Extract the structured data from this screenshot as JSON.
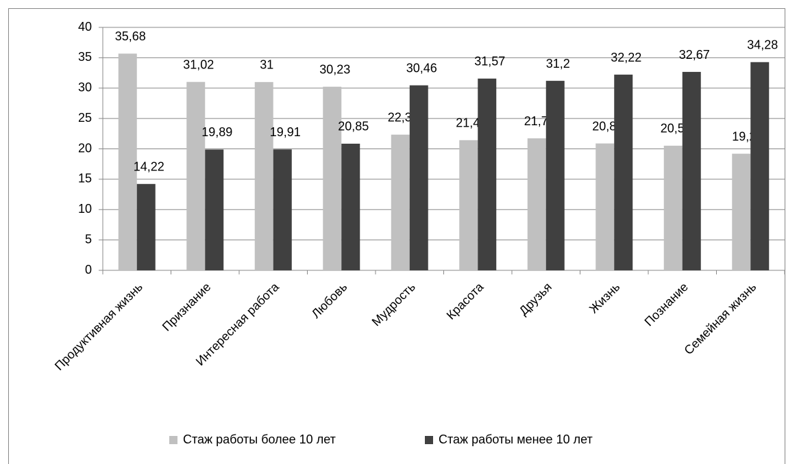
{
  "chart_data": {
    "type": "bar",
    "categories": [
      "Продуктивная жизнь",
      "Признание",
      "Интересная работа",
      "Любовь",
      "Мудрость",
      "Красота",
      "Друзья",
      "Жизнь",
      "Познание",
      "Семейная жизнь"
    ],
    "series": [
      {
        "name": "Стаж работы более 10 лет",
        "color": "#c0c0c0",
        "values": [
          35.68,
          31.02,
          31,
          30.23,
          22.34,
          21.43,
          21.73,
          20.89,
          20.52,
          19.2
        ],
        "value_labels": [
          "35,68",
          "31,02",
          "31",
          "30,23",
          "22,34",
          "21,43",
          "21,73",
          "20,89",
          "20,52",
          "19,2"
        ]
      },
      {
        "name": "Стаж работы менее 10 лет",
        "color": "#404040",
        "values": [
          14.22,
          19.89,
          19.91,
          20.85,
          30.46,
          31.57,
          31.2,
          32.22,
          32.67,
          34.28
        ],
        "value_labels": [
          "14,22",
          "19,89",
          "19,91",
          "20,85",
          "30,46",
          "31,57",
          "31,2",
          "32,22",
          "32,67",
          "34,28"
        ]
      }
    ],
    "ylim": [
      0,
      40
    ],
    "yticks": [
      0,
      5,
      10,
      15,
      20,
      25,
      30,
      35,
      40
    ],
    "grid": true,
    "legend": "bottom"
  }
}
